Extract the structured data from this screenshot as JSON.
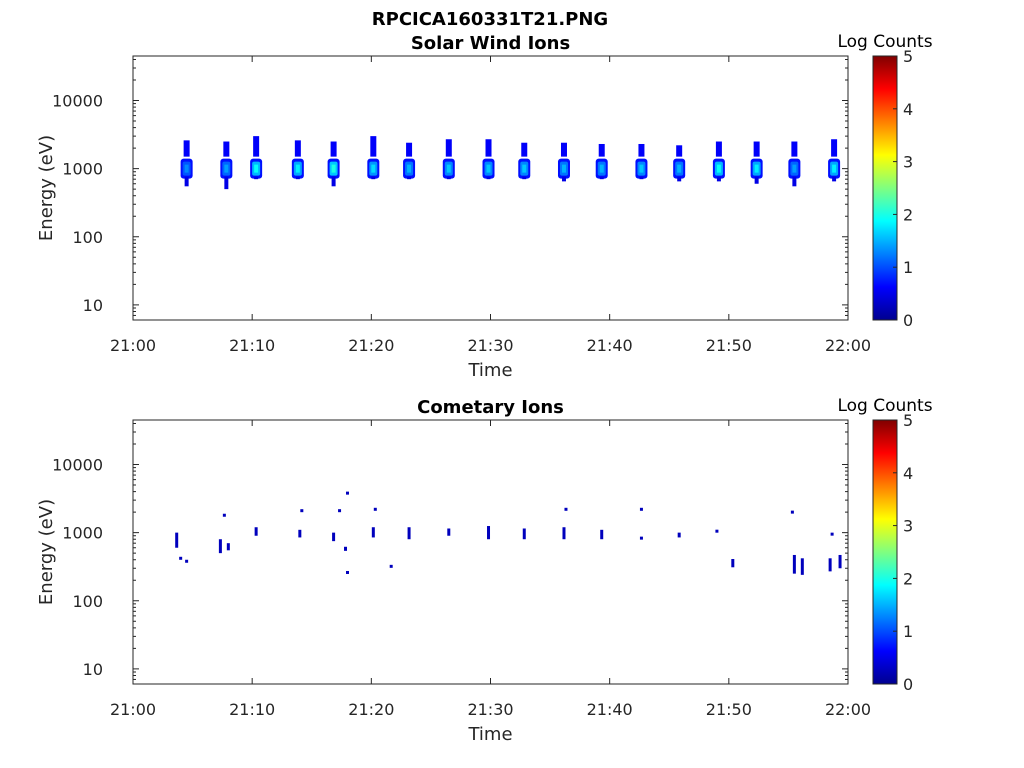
{
  "figure": {
    "filename": "RPCICA160331T21.PNG"
  },
  "chart_data": [
    {
      "type": "heatmap",
      "title": "Solar Wind Ions",
      "xlabel": "Time",
      "ylabel": "Energy (eV)",
      "x_ticks": [
        "21:00",
        "21:10",
        "21:20",
        "21:30",
        "21:40",
        "21:50",
        "22:00"
      ],
      "xlim": [
        "21:00",
        "22:00"
      ],
      "y_scale": "log",
      "y_ticks": [
        10,
        100,
        1000,
        10000
      ],
      "ylim": [
        6,
        45000
      ],
      "colorbar": {
        "label": "Log Counts",
        "range": [
          0,
          5
        ],
        "ticks": [
          0,
          1,
          2,
          3,
          4,
          5
        ],
        "colormap": "jet"
      },
      "blobs": [
        {
          "t": "21:04:30",
          "e_low": 550,
          "e_high": 2600,
          "peak": 1.3
        },
        {
          "t": "21:07:50",
          "e_low": 500,
          "e_high": 2500,
          "peak": 1.4
        },
        {
          "t": "21:10:20",
          "e_low": 700,
          "e_high": 3000,
          "peak": 1.9
        },
        {
          "t": "21:13:50",
          "e_low": 700,
          "e_high": 2600,
          "peak": 1.8
        },
        {
          "t": "21:16:50",
          "e_low": 550,
          "e_high": 2500,
          "peak": 2.0
        },
        {
          "t": "21:20:10",
          "e_low": 700,
          "e_high": 3000,
          "peak": 1.7
        },
        {
          "t": "21:23:10",
          "e_low": 700,
          "e_high": 2400,
          "peak": 1.5
        },
        {
          "t": "21:26:30",
          "e_low": 700,
          "e_high": 2700,
          "peak": 1.6
        },
        {
          "t": "21:29:50",
          "e_low": 700,
          "e_high": 2700,
          "peak": 1.6
        },
        {
          "t": "21:32:50",
          "e_low": 700,
          "e_high": 2400,
          "peak": 1.6
        },
        {
          "t": "21:36:10",
          "e_low": 650,
          "e_high": 2400,
          "peak": 1.5
        },
        {
          "t": "21:39:20",
          "e_low": 700,
          "e_high": 2300,
          "peak": 1.5
        },
        {
          "t": "21:42:40",
          "e_low": 700,
          "e_high": 2300,
          "peak": 1.6
        },
        {
          "t": "21:45:50",
          "e_low": 650,
          "e_high": 2200,
          "peak": 1.5
        },
        {
          "t": "21:49:10",
          "e_low": 650,
          "e_high": 2500,
          "peak": 1.9
        },
        {
          "t": "21:52:20",
          "e_low": 600,
          "e_high": 2500,
          "peak": 1.8
        },
        {
          "t": "21:55:30",
          "e_low": 550,
          "e_high": 2500,
          "peak": 1.4
        },
        {
          "t": "21:58:50",
          "e_low": 650,
          "e_high": 2700,
          "peak": 1.8
        }
      ]
    },
    {
      "type": "heatmap",
      "title": "Cometary Ions",
      "xlabel": "Time",
      "ylabel": "Energy (eV)",
      "x_ticks": [
        "21:00",
        "21:10",
        "21:20",
        "21:30",
        "21:40",
        "21:50",
        "22:00"
      ],
      "xlim": [
        "21:00",
        "22:00"
      ],
      "y_scale": "log",
      "y_ticks": [
        10,
        100,
        1000,
        10000
      ],
      "ylim": [
        6,
        45000
      ],
      "colorbar": {
        "label": "Log Counts",
        "range": [
          0,
          5
        ],
        "ticks": [
          0,
          1,
          2,
          3,
          4,
          5
        ],
        "colormap": "jet"
      },
      "points": [
        {
          "t": "21:03:40",
          "e_low": 600,
          "e_high": 1000,
          "level": 0.3
        },
        {
          "t": "21:04:00",
          "e": 420,
          "level": 0.3
        },
        {
          "t": "21:04:30",
          "e": 380,
          "level": 0.3
        },
        {
          "t": "21:07:20",
          "e_low": 500,
          "e_high": 800,
          "level": 0.3
        },
        {
          "t": "21:07:40",
          "e": 1800,
          "level": 0.3
        },
        {
          "t": "21:08:00",
          "e_low": 550,
          "e_high": 700,
          "level": 0.3
        },
        {
          "t": "21:10:20",
          "e_low": 900,
          "e_high": 1200,
          "level": 0.3
        },
        {
          "t": "21:14:00",
          "e_low": 850,
          "e_high": 1100,
          "level": 0.3
        },
        {
          "t": "21:14:10",
          "e": 2100,
          "level": 0.3
        },
        {
          "t": "21:16:50",
          "e_low": 750,
          "e_high": 1000,
          "level": 0.3
        },
        {
          "t": "21:17:20",
          "e": 2100,
          "level": 0.3
        },
        {
          "t": "21:17:50",
          "e_low": 540,
          "e_high": 620,
          "level": 0.3
        },
        {
          "t": "21:18:00",
          "e": 3800,
          "level": 0.3
        },
        {
          "t": "21:18:00",
          "e": 260,
          "level": 0.3
        },
        {
          "t": "21:20:10",
          "e_low": 850,
          "e_high": 1200,
          "level": 0.3
        },
        {
          "t": "21:20:20",
          "e": 2200,
          "level": 0.3
        },
        {
          "t": "21:21:40",
          "e": 320,
          "level": 0.3
        },
        {
          "t": "21:23:10",
          "e_low": 800,
          "e_high": 1200,
          "level": 0.3
        },
        {
          "t": "21:26:30",
          "e_low": 900,
          "e_high": 1150,
          "level": 0.3
        },
        {
          "t": "21:29:50",
          "e_low": 800,
          "e_high": 1250,
          "level": 0.3
        },
        {
          "t": "21:32:50",
          "e_low": 800,
          "e_high": 1150,
          "level": 0.3
        },
        {
          "t": "21:36:10",
          "e_low": 800,
          "e_high": 1200,
          "level": 0.3
        },
        {
          "t": "21:36:20",
          "e": 2200,
          "level": 0.3
        },
        {
          "t": "21:39:20",
          "e_low": 800,
          "e_high": 1100,
          "level": 0.3
        },
        {
          "t": "21:42:40",
          "e": 2200,
          "level": 0.3
        },
        {
          "t": "21:42:40",
          "e": 830,
          "level": 0.3
        },
        {
          "t": "21:45:50",
          "e_low": 850,
          "e_high": 1000,
          "level": 0.3
        },
        {
          "t": "21:49:00",
          "e": 1050,
          "level": 0.3
        },
        {
          "t": "21:50:20",
          "e_low": 310,
          "e_high": 410,
          "level": 0.3
        },
        {
          "t": "21:55:20",
          "e": 2000,
          "level": 0.3
        },
        {
          "t": "21:55:30",
          "e_low": 250,
          "e_high": 470,
          "level": 0.3
        },
        {
          "t": "21:56:10",
          "e_low": 240,
          "e_high": 420,
          "level": 0.3
        },
        {
          "t": "21:58:30",
          "e_low": 270,
          "e_high": 420,
          "level": 0.3
        },
        {
          "t": "21:58:40",
          "e": 950,
          "level": 0.3
        },
        {
          "t": "21:59:20",
          "e_low": 300,
          "e_high": 470,
          "level": 0.3
        }
      ]
    }
  ]
}
